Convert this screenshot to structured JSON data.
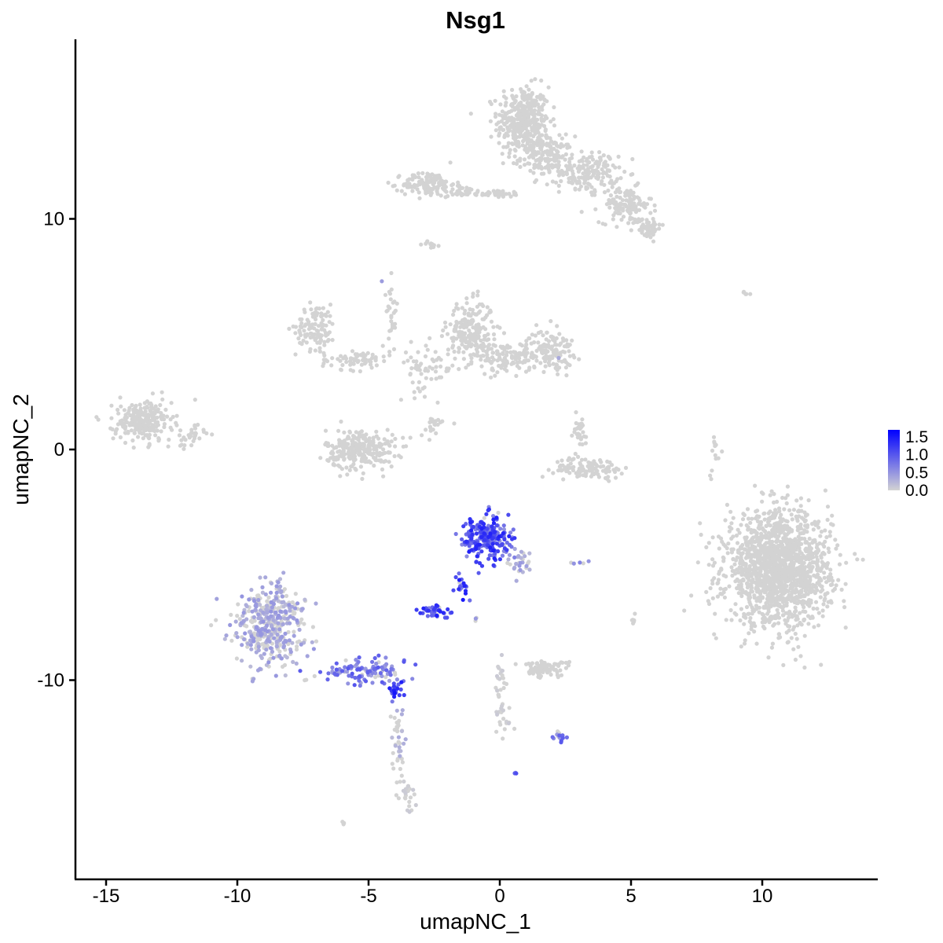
{
  "chart_data": {
    "type": "scatter",
    "title": "Nsg1",
    "xlabel": "umapNC_1",
    "ylabel": "umapNC_2",
    "xlim": [
      -16.4,
      14.3
    ],
    "ylim": [
      -18.9,
      17.8
    ],
    "xticks": [
      -15,
      -10,
      -5,
      0,
      5,
      10
    ],
    "yticks": [
      -10,
      0,
      10
    ],
    "xtick_labels": [
      "-15",
      "-10",
      "-5",
      "0",
      "5",
      "10"
    ],
    "ytick_labels": [
      "-10",
      "0",
      "10"
    ],
    "grid": false,
    "legend": {
      "position": "right",
      "type": "colorbar",
      "labels": [
        "1.5",
        "1.0",
        "0.5",
        "0.0"
      ],
      "values": [
        1.5,
        1.0,
        0.5,
        0.0
      ],
      "range": [
        0.0,
        1.7
      ],
      "low_color": "#d3d3d3",
      "high_color": "#0000ff"
    },
    "clusters": [
      {
        "cx": 0.9,
        "cy": 14.2,
        "rx": 0.9,
        "ry": 1.4,
        "n": 380,
        "expr": 0
      },
      {
        "cx": 1.8,
        "cy": 12.7,
        "rx": 0.9,
        "ry": 0.8,
        "n": 150,
        "expr": 0
      },
      {
        "cx": 3.4,
        "cy": 12.0,
        "rx": 1.0,
        "ry": 0.8,
        "n": 160,
        "expr": 0
      },
      {
        "cx": 4.8,
        "cy": 10.6,
        "rx": 0.9,
        "ry": 0.7,
        "n": 120,
        "expr": 0
      },
      {
        "cx": 5.6,
        "cy": 9.6,
        "rx": 0.5,
        "ry": 0.4,
        "n": 60,
        "expr": 0
      },
      {
        "cx": -2.7,
        "cy": 11.5,
        "rx": 0.9,
        "ry": 0.5,
        "n": 130,
        "expr": 0
      },
      {
        "cx": -0.3,
        "cy": 11.1,
        "rx": 1.2,
        "ry": 0.15,
        "n": 40,
        "expr": 0
      },
      {
        "cx": -1.4,
        "cy": 11.2,
        "rx": 0.5,
        "ry": 0.2,
        "n": 25,
        "expr": 0
      },
      {
        "cx": -2.6,
        "cy": 8.9,
        "rx": 0.3,
        "ry": 0.15,
        "n": 12,
        "expr": 0
      },
      {
        "cx": -7.0,
        "cy": 5.3,
        "rx": 0.7,
        "ry": 0.9,
        "n": 110,
        "expr": 0
      },
      {
        "cx": -5.5,
        "cy": 3.9,
        "rx": 1.2,
        "ry": 0.4,
        "n": 70,
        "expr": 0
      },
      {
        "cx": -4.1,
        "cy": 6.0,
        "rx": 0.2,
        "ry": 1.3,
        "n": 30,
        "expr": 0
      },
      {
        "cx": -2.8,
        "cy": 3.5,
        "rx": 1.0,
        "ry": 1.0,
        "n": 60,
        "expr": 0
      },
      {
        "cx": -1.1,
        "cy": 5.1,
        "rx": 0.8,
        "ry": 1.2,
        "n": 220,
        "expr": 0
      },
      {
        "cx": 0.3,
        "cy": 4.0,
        "rx": 1.0,
        "ry": 0.6,
        "n": 110,
        "expr": 0
      },
      {
        "cx": 1.9,
        "cy": 4.3,
        "rx": 0.8,
        "ry": 0.8,
        "n": 130,
        "expr": 0
      },
      {
        "cx": -5.3,
        "cy": 0.0,
        "rx": 1.2,
        "ry": 0.8,
        "n": 260,
        "expr": 0
      },
      {
        "cx": -2.5,
        "cy": 1.0,
        "rx": 0.5,
        "ry": 0.4,
        "n": 20,
        "expr": 0
      },
      {
        "cx": 3.0,
        "cy": 0.7,
        "rx": 0.4,
        "ry": 0.7,
        "n": 30,
        "expr": 0
      },
      {
        "cx": 3.4,
        "cy": -0.8,
        "rx": 1.2,
        "ry": 0.4,
        "n": 110,
        "expr": 0
      },
      {
        "cx": -13.6,
        "cy": 1.2,
        "rx": 1.0,
        "ry": 0.8,
        "n": 240,
        "expr": 0
      },
      {
        "cx": -11.8,
        "cy": 0.6,
        "rx": 0.5,
        "ry": 0.5,
        "n": 30,
        "expr": 0
      },
      {
        "cx": 10.6,
        "cy": -5.2,
        "rx": 1.8,
        "ry": 2.2,
        "n": 1600,
        "expr": 0
      },
      {
        "cx": 8.2,
        "cy": -0.3,
        "rx": 0.2,
        "ry": 0.8,
        "n": 14,
        "expr": 0
      },
      {
        "cx": 9.5,
        "cy": 6.8,
        "rx": 0.3,
        "ry": 0.1,
        "n": 5,
        "expr": 0
      },
      {
        "cx": -8.8,
        "cy": -7.6,
        "rx": 1.3,
        "ry": 1.6,
        "n": 420,
        "expr": 0.3
      },
      {
        "cx": -5.2,
        "cy": -9.6,
        "rx": 1.4,
        "ry": 0.5,
        "n": 110,
        "expr": 0.6
      },
      {
        "cx": -4.0,
        "cy": -10.4,
        "rx": 0.3,
        "ry": 0.3,
        "n": 25,
        "expr": 0.9
      },
      {
        "cx": -3.9,
        "cy": -12.6,
        "rx": 0.3,
        "ry": 1.4,
        "n": 40,
        "expr": 0.2
      },
      {
        "cx": -3.5,
        "cy": -15.0,
        "rx": 0.3,
        "ry": 0.7,
        "n": 25,
        "expr": 0.05
      },
      {
        "cx": -0.5,
        "cy": -3.8,
        "rx": 0.8,
        "ry": 0.8,
        "n": 260,
        "expr": 0.85
      },
      {
        "cx": 0.8,
        "cy": -4.9,
        "rx": 0.4,
        "ry": 0.5,
        "n": 30,
        "expr": 0.3
      },
      {
        "cx": -1.5,
        "cy": -5.8,
        "rx": 0.3,
        "ry": 0.8,
        "n": 20,
        "expr": 0.9
      },
      {
        "cx": -2.5,
        "cy": -7.0,
        "rx": 0.5,
        "ry": 0.3,
        "n": 40,
        "expr": 0.9
      },
      {
        "cx": -0.9,
        "cy": -7.3,
        "rx": 0.05,
        "ry": 0.1,
        "n": 3,
        "expr": 0.3
      },
      {
        "cx": 0.0,
        "cy": -10.6,
        "rx": 0.2,
        "ry": 1.2,
        "n": 35,
        "expr": 0.05
      },
      {
        "cx": 0.3,
        "cy": -11.8,
        "rx": 0.2,
        "ry": 0.4,
        "n": 8,
        "expr": 0.05
      },
      {
        "cx": 1.7,
        "cy": -9.5,
        "rx": 0.8,
        "ry": 0.3,
        "n": 90,
        "expr": 0
      },
      {
        "cx": 2.3,
        "cy": -12.5,
        "rx": 0.3,
        "ry": 0.2,
        "n": 15,
        "expr": 0.6
      },
      {
        "cx": 0.6,
        "cy": -14.0,
        "rx": 0.05,
        "ry": 0.05,
        "n": 3,
        "expr": 0.7
      },
      {
        "cx": 3.0,
        "cy": -4.9,
        "rx": 0.4,
        "ry": 0.1,
        "n": 5,
        "expr": 0.4
      },
      {
        "cx": 5.1,
        "cy": -7.2,
        "rx": 0.15,
        "ry": 0.3,
        "n": 6,
        "expr": 0
      },
      {
        "cx": -6.0,
        "cy": -16.2,
        "rx": 0.1,
        "ry": 0.1,
        "n": 4,
        "expr": 0
      },
      {
        "cx": -4.5,
        "cy": 7.3,
        "rx": 0.05,
        "ry": 0.05,
        "n": 1,
        "expr": 0.4
      },
      {
        "cx": 2.2,
        "cy": 4.0,
        "rx": 0.1,
        "ry": 0.1,
        "n": 2,
        "expr": 0.4
      }
    ]
  }
}
